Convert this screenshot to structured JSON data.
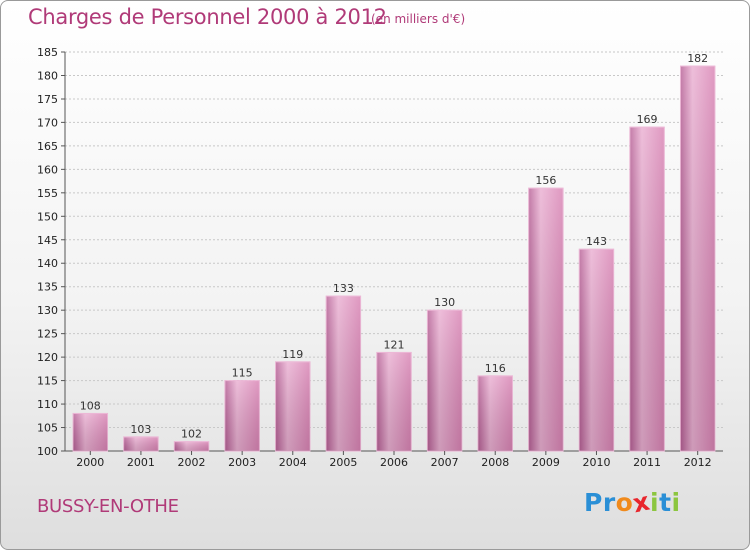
{
  "header": {
    "title": "Charges de Personnel 2000 à 2012",
    "subtitle": "(en milliers d'€)"
  },
  "footer": {
    "place": "BUSSY-EN-OTHE",
    "logo_letters": [
      {
        "ch": "P",
        "color": "#2a8fd6"
      },
      {
        "ch": "r",
        "color": "#2a8fd6"
      },
      {
        "ch": "o",
        "color": "#f08a1c"
      },
      {
        "ch": "x",
        "color": "#e8262d"
      },
      {
        "ch": "i",
        "color": "#8cc63f"
      },
      {
        "ch": "t",
        "color": "#2a8fd6"
      },
      {
        "ch": "i",
        "color": "#8cc63f"
      }
    ]
  },
  "colors": {
    "bar_fill": "#d983b4",
    "bar_light": "#eab0d2",
    "bar_dark": "#b76096",
    "grid": "#c8c8c8",
    "axis": "#555555"
  },
  "chart_data": {
    "type": "bar",
    "title": "Charges de Personnel 2000 à 2012",
    "subtitle": "(en milliers d'€)",
    "xlabel": "",
    "ylabel": "",
    "categories": [
      "2000",
      "2001",
      "2002",
      "2003",
      "2004",
      "2005",
      "2006",
      "2007",
      "2008",
      "2009",
      "2010",
      "2011",
      "2012"
    ],
    "values": [
      108,
      103,
      102,
      115,
      119,
      133,
      121,
      130,
      116,
      156,
      143,
      169,
      182
    ],
    "ylim": [
      100,
      185
    ],
    "yticks": [
      100,
      105,
      110,
      115,
      120,
      125,
      130,
      135,
      140,
      145,
      150,
      155,
      160,
      165,
      170,
      175,
      180,
      185
    ],
    "grid": true,
    "legend": "none",
    "data_labels": true
  }
}
